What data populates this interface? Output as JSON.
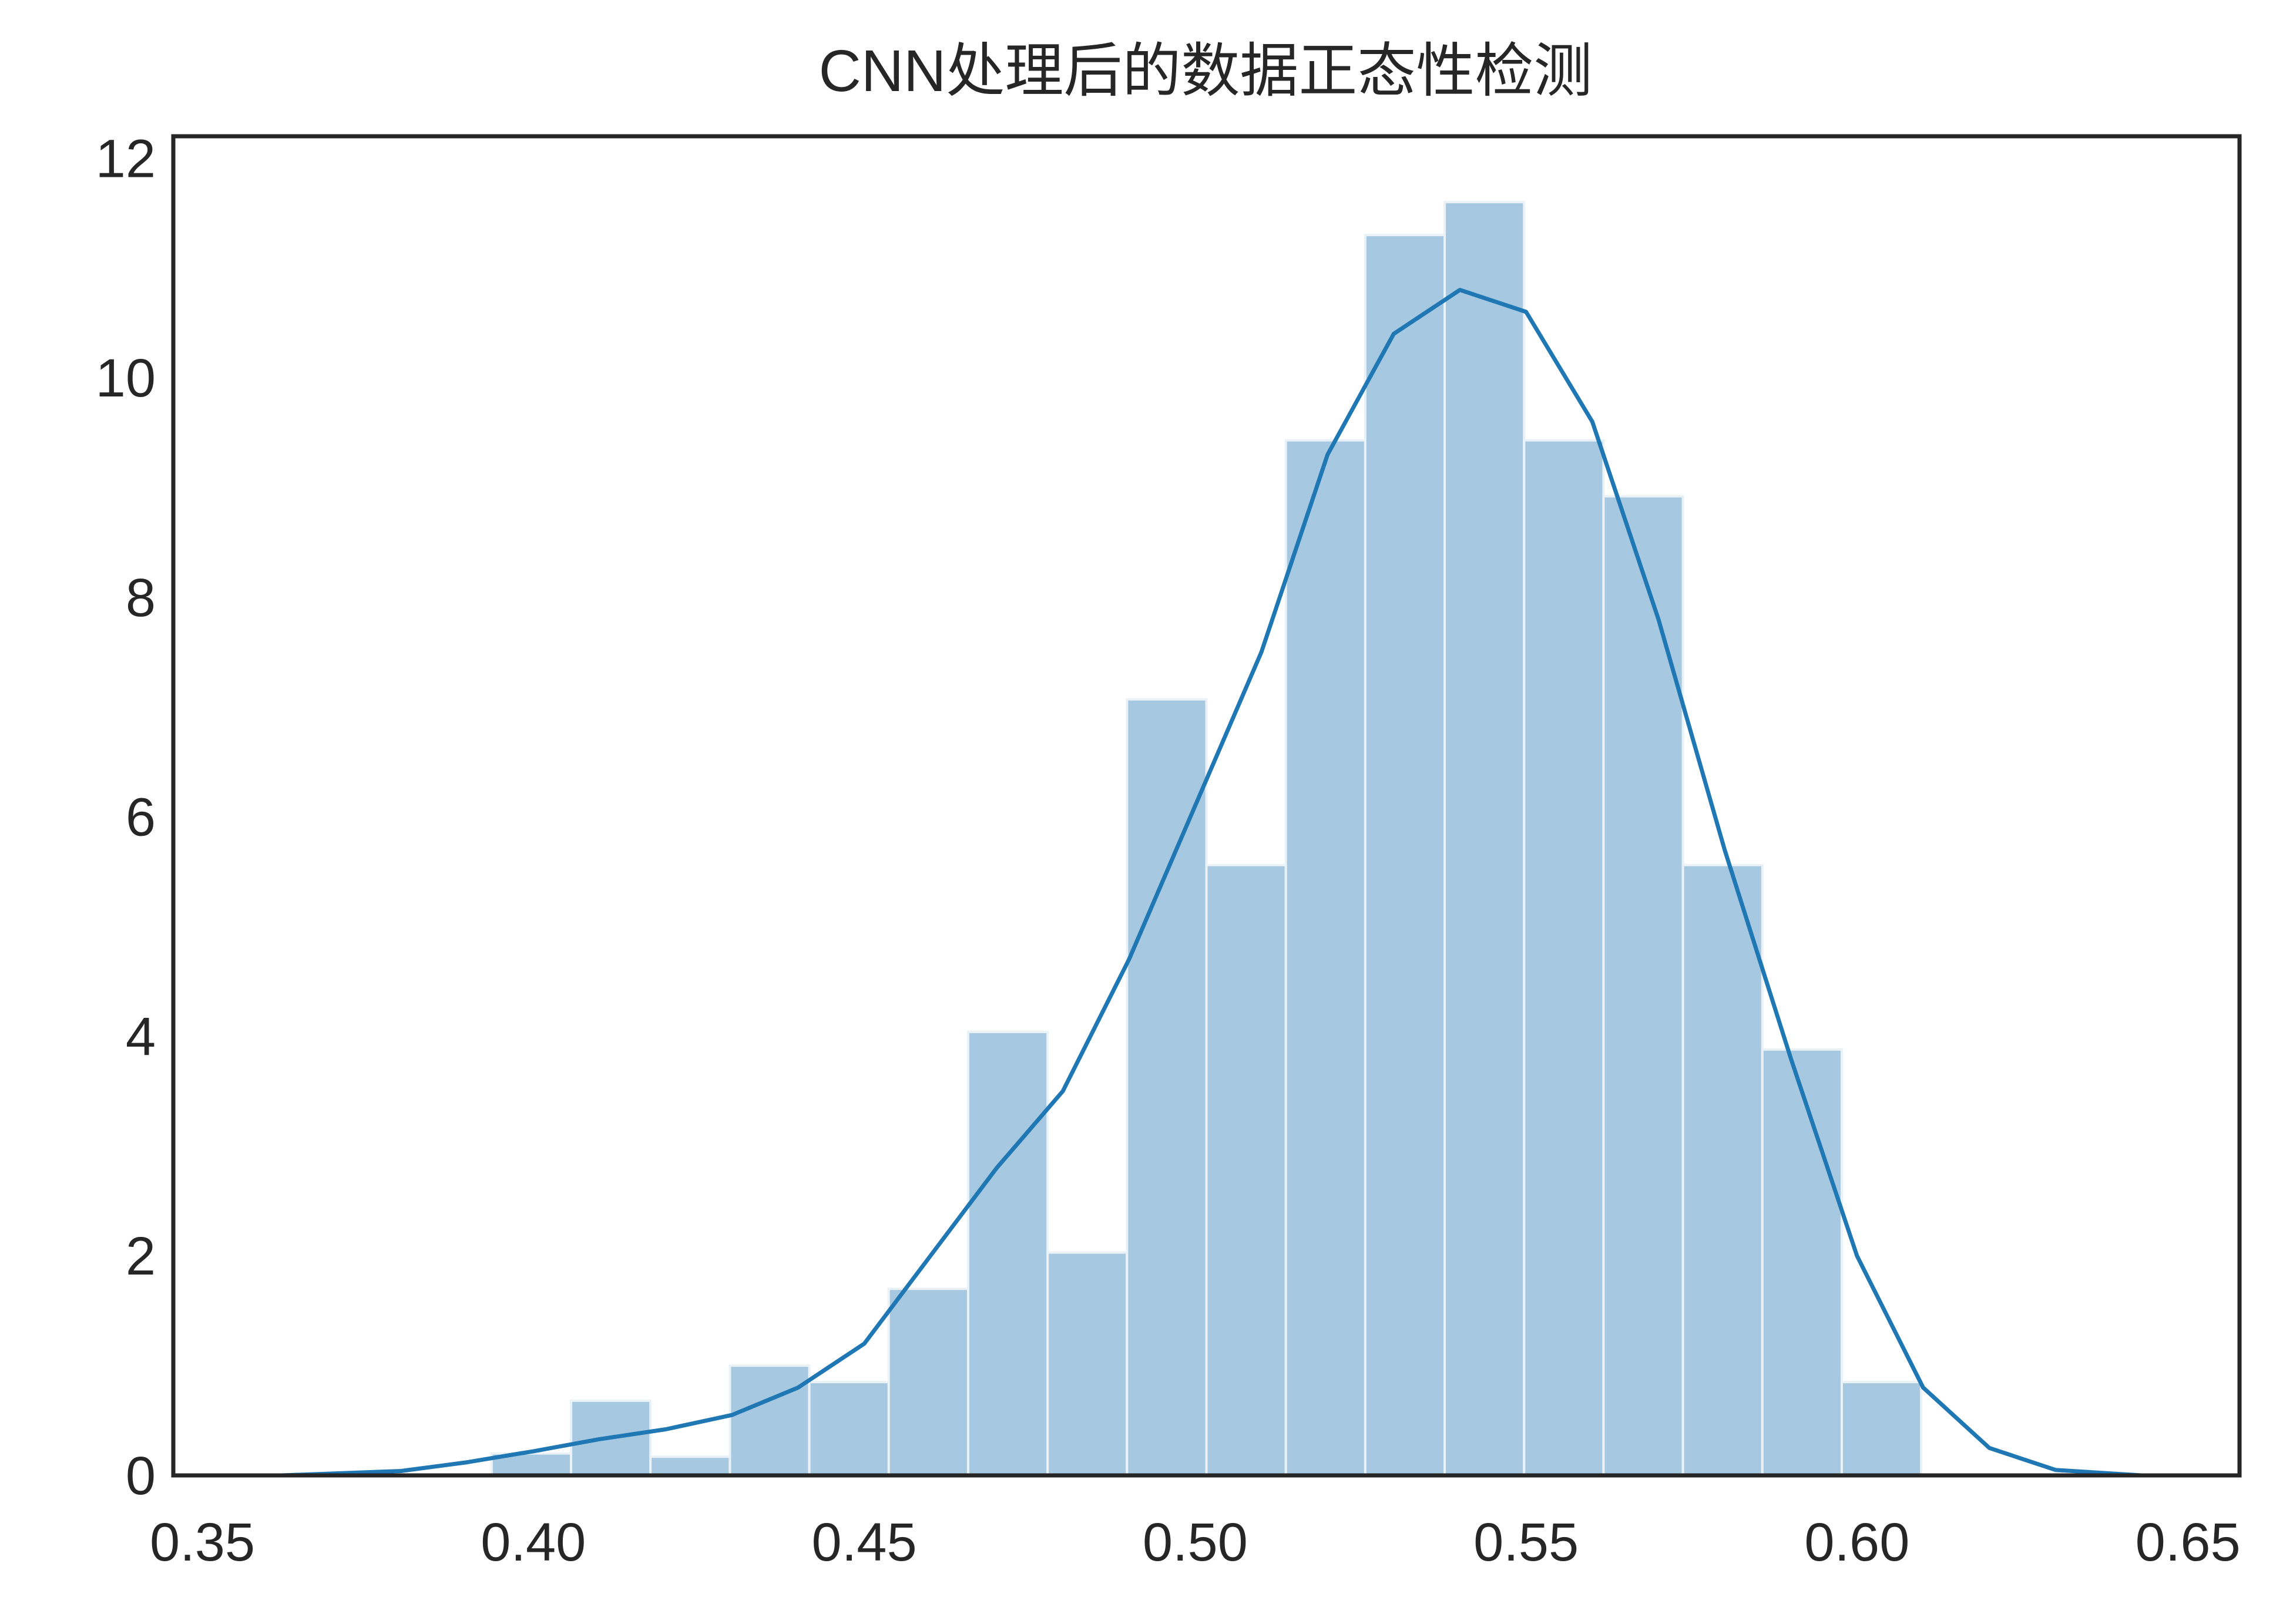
{
  "chart_data": {
    "type": "histogram",
    "title": "CNN处理后的数据正态性检测",
    "bins": [
      0.3937,
      0.4057,
      0.4177,
      0.4297,
      0.4417,
      0.4537,
      0.4657,
      0.4777,
      0.4897,
      0.5017,
      0.5137,
      0.5257,
      0.5377,
      0.5497,
      0.5617,
      0.5737,
      0.5857,
      0.5977,
      0.6097
    ],
    "values": [
      0.2,
      0.68,
      0.17,
      1.0,
      0.85,
      1.7,
      4.04,
      2.03,
      7.07,
      5.56,
      9.43,
      11.3,
      11.6,
      9.43,
      8.92,
      5.56,
      3.88,
      0.85
    ],
    "color": "#a6c8e0",
    "line": {
      "x": [
        0.362,
        0.38,
        0.39,
        0.4,
        0.41,
        0.42,
        0.43,
        0.44,
        0.45,
        0.46,
        0.47,
        0.48,
        0.49,
        0.5,
        0.51,
        0.52,
        0.53,
        0.54,
        0.55,
        0.56,
        0.57,
        0.58,
        0.59,
        0.6,
        0.61,
        0.62,
        0.63,
        0.643
      ],
      "values": [
        0,
        0.04,
        0.12,
        0.22,
        0.33,
        0.42,
        0.55,
        0.8,
        1.2,
        2.0,
        2.8,
        3.5,
        4.7,
        6.1,
        7.5,
        9.3,
        10.4,
        10.8,
        10.6,
        9.6,
        7.8,
        5.7,
        3.8,
        2.0,
        0.8,
        0.25,
        0.05,
        0
      ],
      "color": "#1f77b4"
    },
    "xlim": [
      0.3456,
      0.6578
    ],
    "xticks": [
      0.35,
      {
        "value": 0.4,
        "label": "0.40"
      },
      0.45,
      {
        "value": 0.5,
        "label": "0.50"
      },
      0.55,
      {
        "value": 0.6,
        "label": "0.60"
      },
      0.65
    ],
    "ylim": [
      0,
      12.2
    ],
    "yticks": [
      0,
      2,
      4,
      6,
      8,
      10,
      12
    ]
  }
}
